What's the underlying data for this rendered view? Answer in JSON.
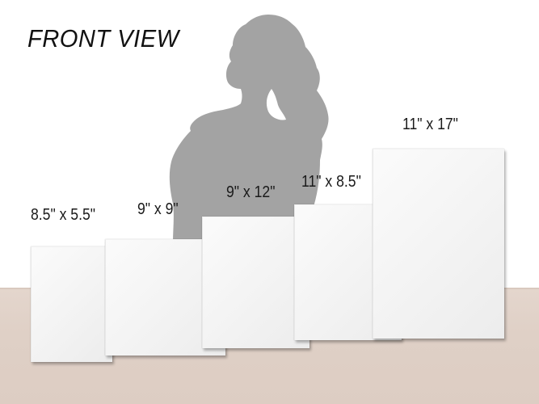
{
  "heading": "FRONT VIEW",
  "canvases": [
    {
      "label": "8.5\" x 5.5\""
    },
    {
      "label": "9\" x 9\""
    },
    {
      "label": "9\" x 12\""
    },
    {
      "label": "11\" x 8.5\""
    },
    {
      "label": "11\" x 17\""
    }
  ],
  "colors": {
    "silhouette": "#a3a3a3",
    "tabletop": "#e0d1c7",
    "canvas": "#f5f5f5"
  },
  "icons": {
    "silhouette": "person-silhouette-icon"
  }
}
